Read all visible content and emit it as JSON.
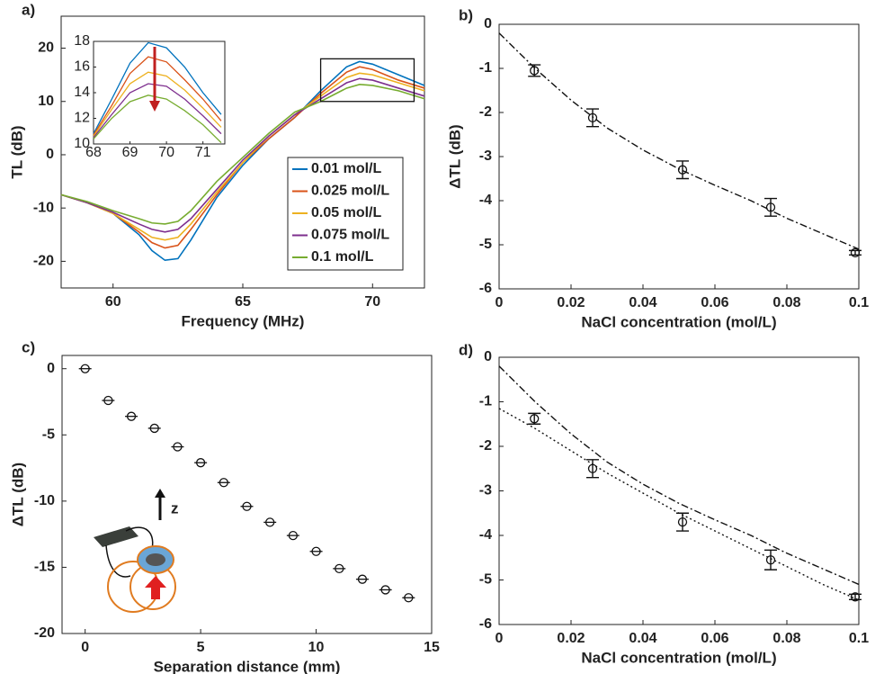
{
  "chart_data": [
    {
      "type": "line",
      "panel_label": "a)",
      "xlabel": "Frequency (MHz)",
      "ylabel": "TL (dB)",
      "xlim": [
        58,
        72
      ],
      "ylim": [
        -25,
        26
      ],
      "xticks": [
        60,
        65,
        70
      ],
      "yticks": [
        -20,
        -10,
        0,
        10,
        20
      ],
      "legend": "lower right",
      "x": [
        58,
        59,
        60,
        61,
        61.5,
        62,
        62.5,
        63,
        64,
        65,
        66,
        67,
        68,
        69,
        69.5,
        70,
        71,
        72
      ],
      "series": [
        {
          "name": "0.01 mol/L",
          "color": "#0072BD",
          "values": [
            -7.5,
            -9,
            -11,
            -15,
            -18,
            -19.8,
            -19.5,
            -16,
            -8,
            -2,
            3,
            7,
            12,
            16.5,
            17.5,
            17,
            15,
            13
          ]
        },
        {
          "name": "0.025 mol/L",
          "color": "#D95319",
          "values": [
            -7.5,
            -9,
            -11,
            -14.5,
            -16.5,
            -17.5,
            -17,
            -14,
            -7.5,
            -1.5,
            3,
            7,
            11.5,
            15.5,
            16.5,
            16,
            14,
            12.5
          ]
        },
        {
          "name": "0.05 mol/L",
          "color": "#EDB120",
          "values": [
            -7.5,
            -9,
            -11,
            -14,
            -15.5,
            -16,
            -15.5,
            -13,
            -7,
            -1.5,
            3.5,
            7.5,
            11,
            14.5,
            15.3,
            15,
            13.5,
            12
          ]
        },
        {
          "name": "0.075 mol/L",
          "color": "#7E2F8E",
          "values": [
            -7.5,
            -9,
            -10.8,
            -13,
            -14,
            -14.5,
            -14,
            -12,
            -6.5,
            -1,
            3.5,
            7.5,
            10.5,
            13.5,
            14.3,
            14,
            12.5,
            11
          ]
        },
        {
          "name": "0.1 mol/L",
          "color": "#77AC30",
          "values": [
            -7.5,
            -8.8,
            -10.5,
            -12,
            -12.8,
            -13,
            -12.5,
            -10.5,
            -5,
            -0.5,
            4,
            8,
            10,
            12.5,
            13.2,
            13,
            12,
            10.5
          ]
        }
      ],
      "inset": {
        "xlim": [
          68,
          71.6
        ],
        "ylim": [
          10,
          18
        ],
        "xticks": [
          68,
          69,
          70,
          71
        ],
        "yticks": [
          10,
          12,
          14,
          16,
          18
        ],
        "x": [
          68,
          68.5,
          69,
          69.5,
          70,
          70.5,
          71,
          71.5
        ],
        "series": [
          {
            "values": [
              10.8,
              13.5,
              16.3,
              17.9,
              17.5,
              16,
              14,
              12.3
            ]
          },
          {
            "values": [
              10.7,
              13,
              15.5,
              16.8,
              16.4,
              15,
              13.5,
              11.8
            ]
          },
          {
            "values": [
              10.6,
              12.7,
              14.7,
              15.6,
              15.3,
              14.2,
              12.8,
              11.3
            ]
          },
          {
            "values": [
              10.5,
              12.3,
              14,
              14.7,
              14.5,
              13.5,
              12.2,
              10.8
            ]
          },
          {
            "values": [
              10.4,
              12,
              13.3,
              13.8,
              13.5,
              12.6,
              11.5,
              10.1
            ]
          }
        ]
      }
    },
    {
      "type": "scatter",
      "panel_label": "b)",
      "xlabel": "NaCl concentration (mol/L)",
      "ylabel": "ΔTL (dB)",
      "xlim": [
        0,
        0.1
      ],
      "ylim": [
        -6,
        0
      ],
      "xticks": [
        0,
        0.02,
        0.04,
        0.06,
        0.08,
        0.1
      ],
      "yticks": [
        -6,
        -5,
        -4,
        -3,
        -2,
        -1,
        0
      ],
      "x": [
        0.0098,
        0.026,
        0.051,
        0.0755,
        0.099
      ],
      "values": [
        -1.05,
        -2.12,
        -3.3,
        -4.15,
        -5.18
      ],
      "errors": [
        0.13,
        0.2,
        0.2,
        0.2,
        0.05
      ],
      "fits": [
        {
          "style": "dashdot",
          "x": [
            0,
            0.01,
            0.02,
            0.03,
            0.04,
            0.05,
            0.06,
            0.07,
            0.08,
            0.09,
            0.1
          ],
          "values": [
            -0.2,
            -1.0,
            -1.72,
            -2.35,
            -2.85,
            -3.28,
            -3.65,
            -4.0,
            -4.4,
            -4.75,
            -5.1
          ]
        }
      ]
    },
    {
      "type": "scatter",
      "panel_label": "c)",
      "xlabel": "Separation distance (mm)",
      "ylabel": "ΔTL  (dB)",
      "annotation": "z",
      "xlim": [
        -1,
        15
      ],
      "ylim": [
        -20,
        1
      ],
      "xticks": [
        0,
        5,
        10,
        15
      ],
      "yticks": [
        -20,
        -15,
        -10,
        -5,
        0
      ],
      "x": [
        0,
        1,
        2,
        3,
        4,
        5,
        6,
        7,
        8,
        9,
        10,
        11,
        12,
        13,
        14
      ],
      "values": [
        0,
        -2.4,
        -3.6,
        -4.5,
        -5.9,
        -7.1,
        -8.6,
        -10.4,
        -11.6,
        -12.6,
        -13.8,
        -15.1,
        -15.9,
        -16.7,
        -17.3
      ]
    },
    {
      "type": "scatter",
      "panel_label": "d)",
      "xlabel": "NaCl concentration (mol/L)",
      "xlim": [
        0,
        0.1
      ],
      "ylim": [
        -6,
        0
      ],
      "xticks": [
        0,
        0.02,
        0.04,
        0.06,
        0.08,
        0.1
      ],
      "yticks": [
        -6,
        -5,
        -4,
        -3,
        -2,
        -1,
        0
      ],
      "x": [
        0.0098,
        0.026,
        0.051,
        0.0755,
        0.099
      ],
      "values": [
        -1.38,
        -2.5,
        -3.7,
        -4.55,
        -5.38
      ],
      "errors": [
        0.12,
        0.2,
        0.2,
        0.22,
        0.06
      ],
      "fits": [
        {
          "style": "dashdot",
          "x": [
            0,
            0.01,
            0.02,
            0.03,
            0.04,
            0.05,
            0.06,
            0.07,
            0.08,
            0.09,
            0.1
          ],
          "values": [
            -0.2,
            -1.0,
            -1.72,
            -2.35,
            -2.85,
            -3.28,
            -3.65,
            -4.0,
            -4.4,
            -4.75,
            -5.1
          ]
        },
        {
          "style": "dotted",
          "x": [
            0,
            0.01,
            0.02,
            0.03,
            0.04,
            0.05,
            0.06,
            0.07,
            0.08,
            0.09,
            0.1
          ],
          "values": [
            -1.15,
            -1.6,
            -2.1,
            -2.6,
            -3.05,
            -3.5,
            -3.9,
            -4.3,
            -4.7,
            -5.1,
            -5.45
          ]
        }
      ]
    }
  ]
}
